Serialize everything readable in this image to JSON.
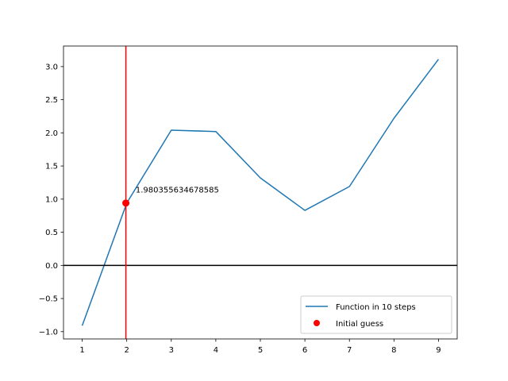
{
  "chart_data": {
    "type": "line",
    "x": [
      1,
      2,
      3,
      4,
      5,
      6,
      7,
      8,
      9
    ],
    "series": [
      {
        "name": "Function in 10 steps",
        "color": "#1f77b4",
        "values": [
          -0.91,
          0.94,
          2.04,
          2.02,
          1.32,
          0.83,
          1.19,
          2.22,
          3.11
        ]
      }
    ],
    "points": [
      {
        "name": "Initial guess",
        "color": "#ff0000",
        "x": 1.98,
        "y": 0.94
      }
    ],
    "vertical_line": {
      "x": 1.980355634678585,
      "color": "#ff0000"
    },
    "horizontal_line": {
      "y": 0.0,
      "color": "#000000"
    },
    "annotation": {
      "text": "1.980355634678585",
      "x": 2.2,
      "y": 1.15
    },
    "xlim": [
      0.58,
      9.42
    ],
    "ylim": [
      -1.11,
      3.31
    ],
    "xticks": [
      "1",
      "2",
      "3",
      "4",
      "5",
      "6",
      "7",
      "8",
      "9"
    ],
    "yticks": [
      "−1.0",
      "−0.5",
      "0.0",
      "0.5",
      "1.0",
      "1.5",
      "2.0",
      "2.5",
      "3.0"
    ],
    "ytick_values": [
      -1.0,
      -0.5,
      0.0,
      0.5,
      1.0,
      1.5,
      2.0,
      2.5,
      3.0
    ],
    "legend_position": "lower-right",
    "grid": false,
    "title": "",
    "xlabel": "",
    "ylabel": ""
  }
}
